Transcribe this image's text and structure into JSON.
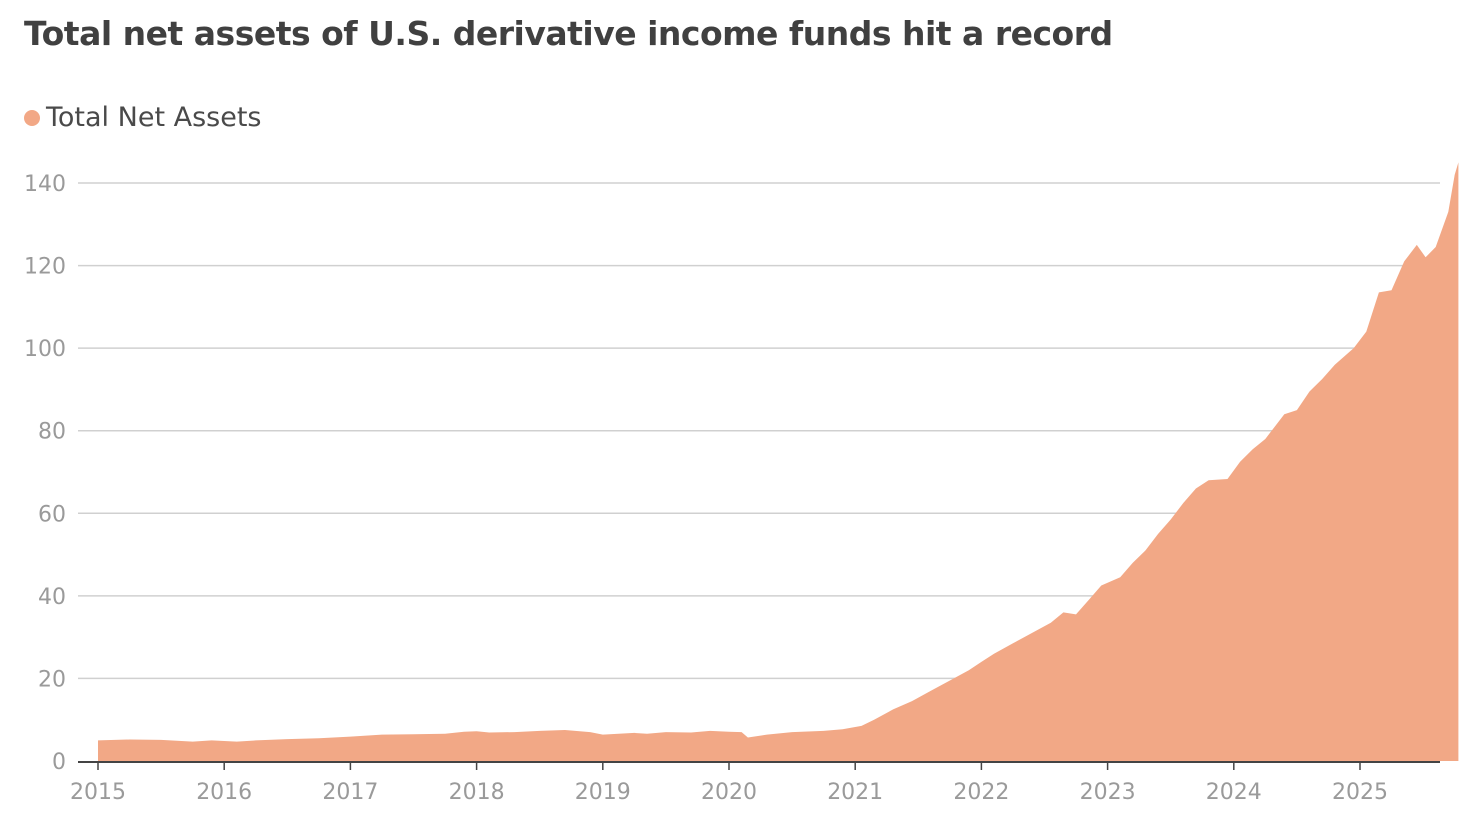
{
  "title": "Total net assets of U.S. derivative income funds hit a record",
  "legend": {
    "label": "Total Net Assets",
    "color": "#f2a886"
  },
  "chart_data": {
    "type": "area",
    "title": "Total net assets of U.S. derivative income funds hit a record",
    "xlabel": "",
    "ylabel": "",
    "xlim": [
      2015,
      2025.75
    ],
    "ylim": [
      0,
      140
    ],
    "grid": true,
    "legend_position": "top-left",
    "color": "#f2a886",
    "y_ticks": [
      0,
      20,
      40,
      60,
      80,
      100,
      120,
      140
    ],
    "x_ticks": [
      2015,
      2016,
      2017,
      2018,
      2019,
      2020,
      2021,
      2022,
      2023,
      2024,
      2025
    ],
    "series": [
      {
        "name": "Total Net Assets",
        "points": [
          [
            2015.0,
            5.0
          ],
          [
            2015.25,
            5.2
          ],
          [
            2015.5,
            5.1
          ],
          [
            2015.75,
            4.7
          ],
          [
            2015.9,
            5.0
          ],
          [
            2016.1,
            4.7
          ],
          [
            2016.25,
            5.0
          ],
          [
            2016.5,
            5.3
          ],
          [
            2016.75,
            5.5
          ],
          [
            2017.0,
            5.9
          ],
          [
            2017.25,
            6.4
          ],
          [
            2017.5,
            6.5
          ],
          [
            2017.75,
            6.6
          ],
          [
            2017.9,
            7.1
          ],
          [
            2018.0,
            7.2
          ],
          [
            2018.1,
            6.9
          ],
          [
            2018.3,
            7.0
          ],
          [
            2018.5,
            7.3
          ],
          [
            2018.7,
            7.5
          ],
          [
            2018.9,
            7.0
          ],
          [
            2019.0,
            6.4
          ],
          [
            2019.25,
            6.8
          ],
          [
            2019.35,
            6.6
          ],
          [
            2019.5,
            7.0
          ],
          [
            2019.7,
            6.9
          ],
          [
            2019.85,
            7.3
          ],
          [
            2020.0,
            7.1
          ],
          [
            2020.1,
            7.0
          ],
          [
            2020.15,
            5.7
          ],
          [
            2020.3,
            6.4
          ],
          [
            2020.5,
            7.0
          ],
          [
            2020.75,
            7.3
          ],
          [
            2020.9,
            7.7
          ],
          [
            2021.05,
            8.5
          ],
          [
            2021.15,
            10.0
          ],
          [
            2021.3,
            12.5
          ],
          [
            2021.45,
            14.5
          ],
          [
            2021.6,
            17.0
          ],
          [
            2021.75,
            19.5
          ],
          [
            2021.9,
            22.0
          ],
          [
            2022.0,
            24.0
          ],
          [
            2022.1,
            26.0
          ],
          [
            2022.25,
            28.5
          ],
          [
            2022.4,
            31.0
          ],
          [
            2022.55,
            33.5
          ],
          [
            2022.65,
            36.0
          ],
          [
            2022.75,
            35.5
          ],
          [
            2022.85,
            39.0
          ],
          [
            2022.95,
            42.5
          ],
          [
            2023.1,
            44.5
          ],
          [
            2023.2,
            48.0
          ],
          [
            2023.3,
            51.0
          ],
          [
            2023.4,
            55.0
          ],
          [
            2023.5,
            58.5
          ],
          [
            2023.6,
            62.5
          ],
          [
            2023.7,
            66.0
          ],
          [
            2023.8,
            68.0
          ],
          [
            2023.95,
            68.3
          ],
          [
            2024.05,
            72.5
          ],
          [
            2024.15,
            75.5
          ],
          [
            2024.25,
            78.0
          ],
          [
            2024.4,
            84.0
          ],
          [
            2024.5,
            85.0
          ],
          [
            2024.6,
            89.5
          ],
          [
            2024.7,
            92.5
          ],
          [
            2024.8,
            96.0
          ],
          [
            2024.95,
            100.0
          ],
          [
            2025.05,
            104.0
          ],
          [
            2025.15,
            113.5
          ],
          [
            2025.25,
            114.0
          ],
          [
            2025.35,
            121.0
          ],
          [
            2025.45,
            125.0
          ],
          [
            2025.52,
            122.0
          ],
          [
            2025.6,
            124.5
          ],
          [
            2025.7,
            133.0
          ],
          [
            2025.75,
            142.0
          ],
          [
            2025.78,
            145.0
          ]
        ]
      }
    ]
  }
}
